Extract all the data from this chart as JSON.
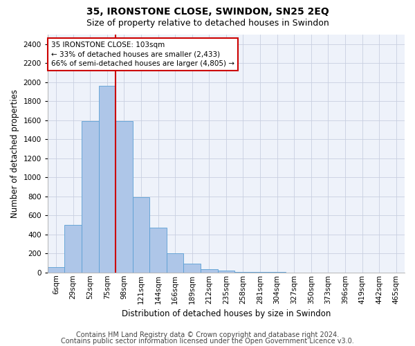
{
  "title": "35, IRONSTONE CLOSE, SWINDON, SN25 2EQ",
  "subtitle": "Size of property relative to detached houses in Swindon",
  "xlabel": "Distribution of detached houses by size in Swindon",
  "ylabel": "Number of detached properties",
  "categories": [
    "6sqm",
    "29sqm",
    "52sqm",
    "75sqm",
    "98sqm",
    "121sqm",
    "144sqm",
    "166sqm",
    "189sqm",
    "212sqm",
    "235sqm",
    "258sqm",
    "281sqm",
    "304sqm",
    "327sqm",
    "350sqm",
    "373sqm",
    "396sqm",
    "419sqm",
    "442sqm",
    "465sqm"
  ],
  "values": [
    55,
    500,
    1590,
    1960,
    1590,
    790,
    470,
    200,
    90,
    35,
    20,
    5,
    5,
    5,
    0,
    0,
    0,
    0,
    0,
    0,
    0
  ],
  "bar_color": "#aec6e8",
  "bar_edge_color": "#5a9fd4",
  "vline_color": "#cc0000",
  "vline_x_index": 3.5,
  "annotation_text": "35 IRONSTONE CLOSE: 103sqm\n← 33% of detached houses are smaller (2,433)\n66% of semi-detached houses are larger (4,805) →",
  "annotation_box_color": "#ffffff",
  "annotation_box_edge": "#cc0000",
  "ylim": [
    0,
    2500
  ],
  "yticks": [
    0,
    200,
    400,
    600,
    800,
    1000,
    1200,
    1400,
    1600,
    1800,
    2000,
    2200,
    2400
  ],
  "footer1": "Contains HM Land Registry data © Crown copyright and database right 2024.",
  "footer2": "Contains public sector information licensed under the Open Government Licence v3.0.",
  "plot_bg_color": "#eef2fa",
  "title_fontsize": 10,
  "subtitle_fontsize": 9,
  "axis_label_fontsize": 8.5,
  "tick_fontsize": 7.5,
  "annotation_fontsize": 7.5,
  "footer_fontsize": 7
}
